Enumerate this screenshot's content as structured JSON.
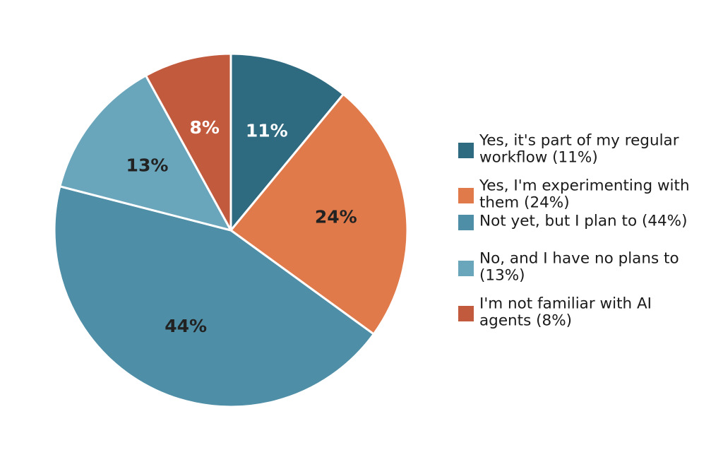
{
  "chart_data": {
    "type": "pie",
    "start_angle_deg": 90,
    "direction": "clockwise",
    "legend_position": "right",
    "slices": [
      {
        "label_lines": [
          "Yes, it's part of my regular",
          "workflow (11%)"
        ],
        "value": 11,
        "pct_label": "11%",
        "color": "#2e6a80",
        "text_color": "#ffffff"
      },
      {
        "label_lines": [
          "Yes, I'm experimenting with",
          "them (24%)"
        ],
        "value": 24,
        "pct_label": "24%",
        "color": "#e07a4b",
        "text_color": "#222222"
      },
      {
        "label_lines": [
          "Not yet, but I plan to (44%)"
        ],
        "value": 44,
        "pct_label": "44%",
        "color": "#4e8fa7",
        "text_color": "#222222"
      },
      {
        "label_lines": [
          "No, and I have no plans to",
          "(13%)"
        ],
        "value": 13,
        "pct_label": "13%",
        "color": "#6aa6bb",
        "text_color": "#222222"
      },
      {
        "label_lines": [
          "I'm not familiar with AI",
          "agents (8%)"
        ],
        "value": 8,
        "pct_label": "8%",
        "color": "#c25a3e",
        "text_color": "#ffffff"
      }
    ]
  }
}
